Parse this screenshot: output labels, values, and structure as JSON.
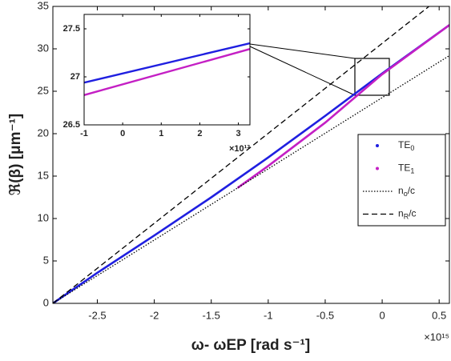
{
  "chart_data": [
    {
      "type": "line",
      "xlabel": "ω- ωEP [rad s⁻¹]",
      "ylabel": "ℜ(β) [μm⁻¹]",
      "x_exponent": "×10¹⁵",
      "xlim": [
        -2.89,
        0.59
      ],
      "ylim": [
        0,
        35
      ],
      "xticks": [
        -2.5,
        -2,
        -1.5,
        -1,
        -0.5,
        0,
        0.5
      ],
      "yticks": [
        0,
        5,
        10,
        15,
        20,
        25,
        30,
        35
      ],
      "legend": "right",
      "series": [
        {
          "name": "TE0",
          "color": "#1f1fe0",
          "linestyle": "solid",
          "x": [
            -2.89,
            -2.5,
            -2,
            -1.5,
            -1,
            -0.5,
            0,
            0.59
          ],
          "values": [
            0,
            3.6,
            8.0,
            12.5,
            17.2,
            22.1,
            27.1,
            32.8
          ]
        },
        {
          "name": "TE1",
          "color": "#c41fc4",
          "linestyle": "solid",
          "x": [
            -1.27,
            -1,
            -0.5,
            0,
            0.59
          ],
          "values": [
            13.6,
            16.2,
            21.3,
            27.0,
            32.8
          ]
        },
        {
          "name": "no/c",
          "color": "#000000",
          "linestyle": "dotted",
          "x": [
            -2.89,
            0.59
          ],
          "values": [
            0,
            29.2
          ]
        },
        {
          "name": "nR/c",
          "color": "#000000",
          "linestyle": "dashed",
          "x": [
            -2.89,
            0.59
          ],
          "values": [
            0,
            36.9
          ]
        }
      ]
    },
    {
      "type": "line",
      "x_exponent": "×10¹³",
      "xlim": [
        -1,
        3.3
      ],
      "ylim": [
        26.5,
        27.65
      ],
      "xticks": [
        -1,
        0,
        1,
        2,
        3
      ],
      "yticks": [
        26.5,
        27,
        27.5
      ],
      "series": [
        {
          "color": "#1f1fe0",
          "linestyle": "solid",
          "x": [
            -1,
            3.3
          ],
          "values": [
            26.94,
            27.35
          ]
        },
        {
          "color": "#c41fc4",
          "linestyle": "solid",
          "x": [
            -1,
            3.3
          ],
          "values": [
            26.81,
            27.29
          ]
        }
      ]
    }
  ]
}
